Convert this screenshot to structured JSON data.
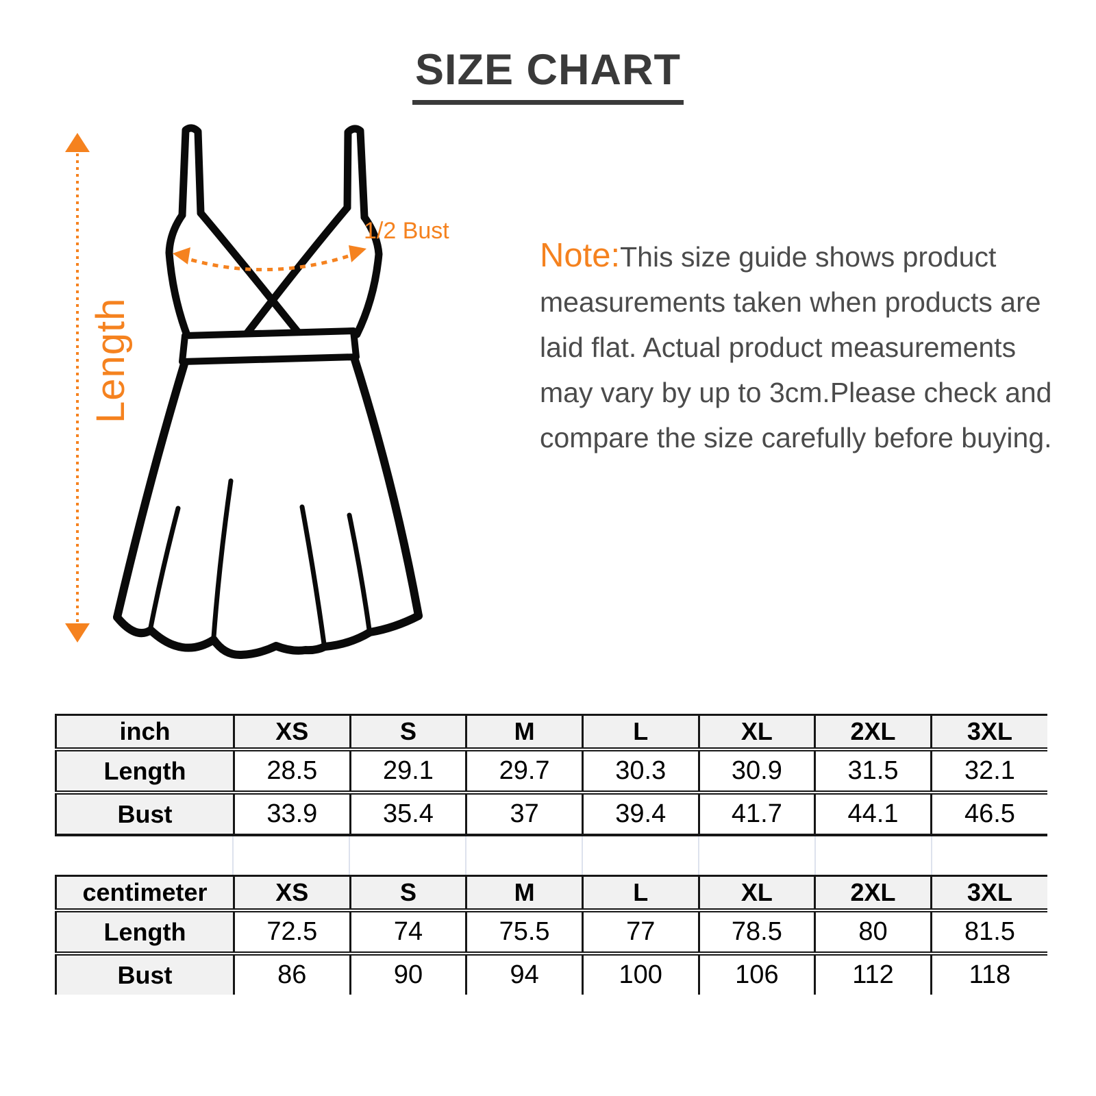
{
  "title": "SIZE CHART",
  "diagram": {
    "length_label": "Length",
    "half_bust_label": "1/2 Bust"
  },
  "note": {
    "prefix": "Note:",
    "body": "This size guide shows product measurements taken when products are laid flat. Actual product measurements may vary by up to 3cm.Please check and compare the size carefully before buying."
  },
  "colors": {
    "accent_orange": "#F5821F",
    "title_gray": "#3A3A3A",
    "note_gray": "#4B4B4B",
    "line_black": "#0A0A0A",
    "table_border": "#161616",
    "table_header_bg": "#F1F1F1",
    "spacer_line": "#DDE2ED"
  },
  "tables": [
    {
      "unit": "inch",
      "sizes": [
        "XS",
        "S",
        "M",
        "L",
        "XL",
        "2XL",
        "3XL"
      ],
      "rows": [
        {
          "label": "Length",
          "values": [
            "28.5",
            "29.1",
            "29.7",
            "30.3",
            "30.9",
            "31.5",
            "32.1"
          ]
        },
        {
          "label": "Bust",
          "values": [
            "33.9",
            "35.4",
            "37",
            "39.4",
            "41.7",
            "44.1",
            "46.5"
          ]
        }
      ]
    },
    {
      "unit": "centimeter",
      "sizes": [
        "XS",
        "S",
        "M",
        "L",
        "XL",
        "2XL",
        "3XL"
      ],
      "rows": [
        {
          "label": "Length",
          "values": [
            "72.5",
            "74",
            "75.5",
            "77",
            "78.5",
            "80",
            "81.5"
          ]
        },
        {
          "label": "Bust",
          "values": [
            "86",
            "90",
            "94",
            "100",
            "106",
            "112",
            "118"
          ]
        }
      ]
    }
  ]
}
